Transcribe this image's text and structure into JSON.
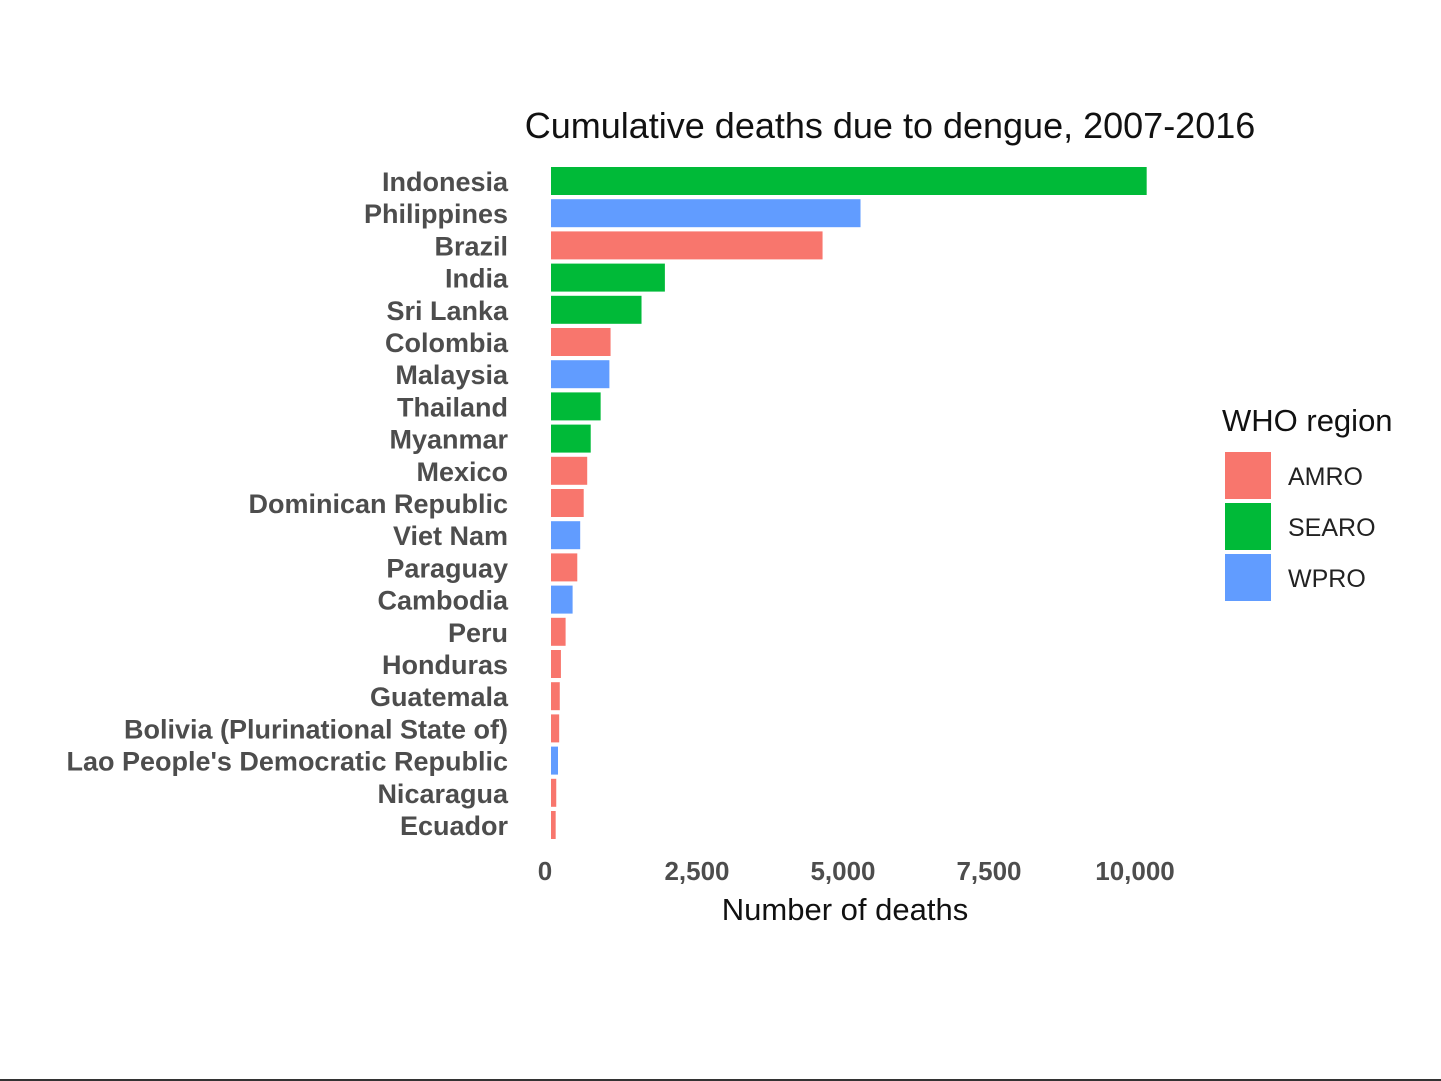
{
  "chart_data": {
    "type": "bar",
    "orientation": "horizontal",
    "title": "Cumulative deaths due to dengue, 2007-2016",
    "xlabel": "Number of deaths",
    "ylabel": "",
    "xlim": [
      0,
      10500
    ],
    "x_ticks": [
      0,
      2500,
      5000,
      7500,
      10000
    ],
    "x_tick_labels": [
      "0",
      "2,500",
      "5,000",
      "7,500",
      "10,000"
    ],
    "grid": false,
    "legend_title": "WHO region",
    "legend_position": "right",
    "legend": [
      {
        "name": "AMRO",
        "color": "#F8766D"
      },
      {
        "name": "SEARO",
        "color": "#00BA38"
      },
      {
        "name": "WPRO",
        "color": "#619CFF"
      }
    ],
    "categories": [
      "Indonesia",
      "Philippines",
      "Brazil",
      "India",
      "Sri Lanka",
      "Colombia",
      "Malaysia",
      "Thailand",
      "Myanmar",
      "Mexico",
      "Dominican Republic",
      "Viet Nam",
      "Paraguay",
      "Cambodia",
      "Peru",
      "Honduras",
      "Guatemala",
      "Bolivia (Plurinational State of)",
      "Lao People's Democratic Republic",
      "Nicaragua",
      "Ecuador"
    ],
    "values": [
      10200,
      5300,
      4650,
      1950,
      1550,
      1020,
      1000,
      850,
      680,
      620,
      560,
      500,
      450,
      370,
      250,
      170,
      150,
      140,
      120,
      90,
      80
    ],
    "regions": [
      "SEARO",
      "WPRO",
      "AMRO",
      "SEARO",
      "SEARO",
      "AMRO",
      "WPRO",
      "SEARO",
      "SEARO",
      "AMRO",
      "AMRO",
      "WPRO",
      "AMRO",
      "WPRO",
      "AMRO",
      "AMRO",
      "AMRO",
      "AMRO",
      "WPRO",
      "AMRO",
      "AMRO"
    ]
  }
}
